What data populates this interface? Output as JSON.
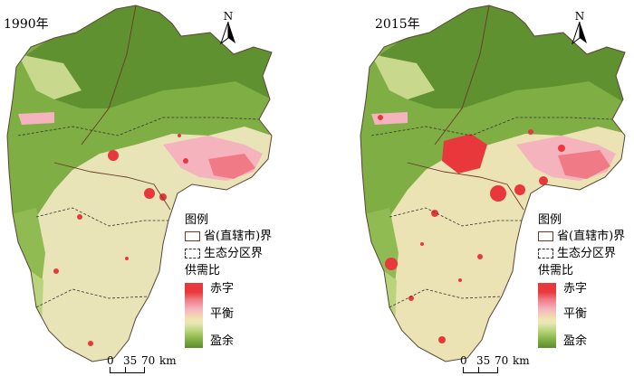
{
  "maps": [
    {
      "year": "1990年",
      "north_label": "N",
      "legend": {
        "title": "图例",
        "boundary_province": "省(直辖市)界",
        "boundary_eco": "生态分区界",
        "supply_title": "供需比",
        "class_deficit": "赤字",
        "class_balance": "平衡",
        "class_surplus": "盈余"
      },
      "scale": {
        "ticks": [
          "0",
          "35",
          "70"
        ],
        "unit": "km"
      }
    },
    {
      "year": "2015年",
      "north_label": "N",
      "legend": {
        "title": "图例",
        "boundary_province": "省(直辖市)界",
        "boundary_eco": "生态分区界",
        "supply_title": "供需比",
        "class_deficit": "赤字",
        "class_balance": "平衡",
        "class_surplus": "盈余"
      },
      "scale": {
        "ticks": [
          "0",
          "35",
          "70"
        ],
        "unit": "km"
      }
    }
  ],
  "colors": {
    "deficit": "#e8383b",
    "pink": "#f4b3bd",
    "balance": "#f3e3b0",
    "light_green": "#b8d47a",
    "surplus": "#5c8c2c"
  }
}
